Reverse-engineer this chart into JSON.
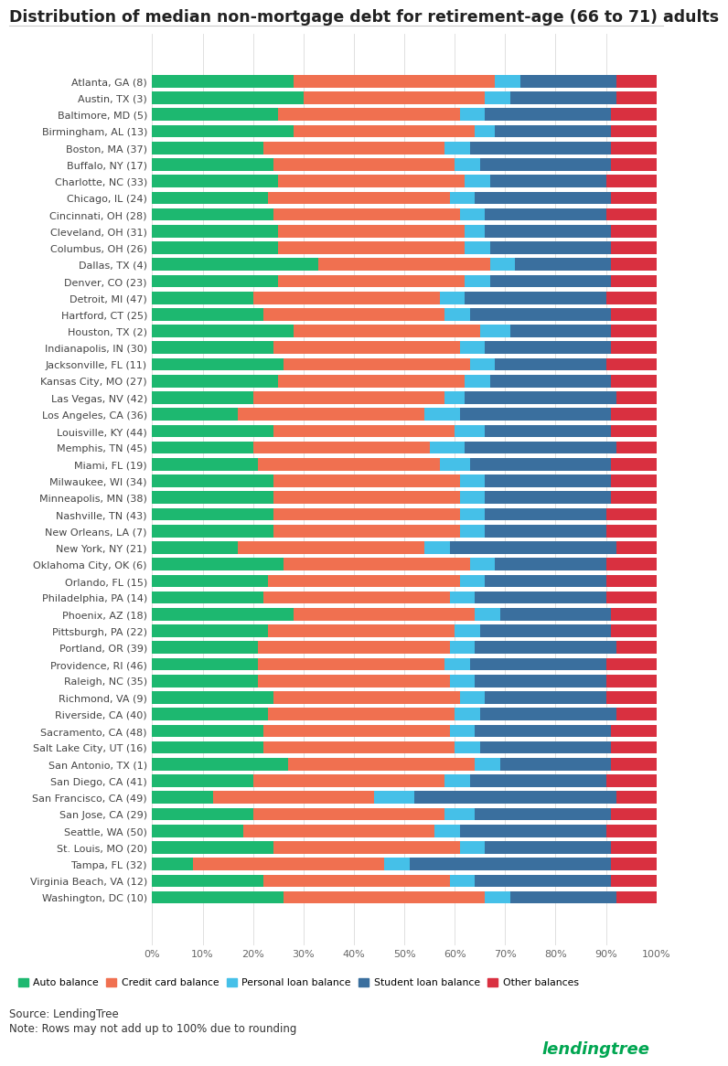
{
  "title": "Distribution of median non-mortgage debt for retirement-age (66 to 71) adults",
  "categories": [
    "Atlanta, GA (8)",
    "Austin, TX (3)",
    "Baltimore, MD (5)",
    "Birmingham, AL (13)",
    "Boston, MA (37)",
    "Buffalo, NY (17)",
    "Charlotte, NC (33)",
    "Chicago, IL (24)",
    "Cincinnati, OH (28)",
    "Cleveland, OH (31)",
    "Columbus, OH (26)",
    "Dallas, TX (4)",
    "Denver, CO (23)",
    "Detroit, MI (47)",
    "Hartford, CT (25)",
    "Houston, TX (2)",
    "Indianapolis, IN (30)",
    "Jacksonville, FL (11)",
    "Kansas City, MO (27)",
    "Las Vegas, NV (42)",
    "Los Angeles, CA (36)",
    "Louisville, KY (44)",
    "Memphis, TN (45)",
    "Miami, FL (19)",
    "Milwaukee, WI (34)",
    "Minneapolis, MN (38)",
    "Nashville, TN (43)",
    "New Orleans, LA (7)",
    "New York, NY (21)",
    "Oklahoma City, OK (6)",
    "Orlando, FL (15)",
    "Philadelphia, PA (14)",
    "Phoenix, AZ (18)",
    "Pittsburgh, PA (22)",
    "Portland, OR (39)",
    "Providence, RI (46)",
    "Raleigh, NC (35)",
    "Richmond, VA (9)",
    "Riverside, CA (40)",
    "Sacramento, CA (48)",
    "Salt Lake City, UT (16)",
    "San Antonio, TX (1)",
    "San Diego, CA (41)",
    "San Francisco, CA (49)",
    "San Jose, CA (29)",
    "Seattle, WA (50)",
    "St. Louis, MO (20)",
    "Tampa, FL (32)",
    "Virginia Beach, VA (12)",
    "Washington, DC (10)"
  ],
  "auto": [
    28,
    30,
    25,
    28,
    22,
    24,
    25,
    23,
    24,
    25,
    25,
    33,
    25,
    20,
    22,
    28,
    24,
    26,
    25,
    20,
    17,
    24,
    20,
    21,
    24,
    24,
    24,
    24,
    17,
    26,
    23,
    22,
    28,
    23,
    21,
    21,
    21,
    24,
    23,
    22,
    22,
    27,
    20,
    12,
    20,
    18,
    24,
    8,
    22,
    26
  ],
  "credit": [
    40,
    36,
    36,
    36,
    36,
    36,
    37,
    36,
    37,
    37,
    37,
    34,
    37,
    37,
    36,
    37,
    37,
    37,
    37,
    38,
    37,
    36,
    35,
    36,
    37,
    37,
    37,
    37,
    37,
    37,
    38,
    37,
    36,
    37,
    38,
    37,
    38,
    37,
    37,
    37,
    38,
    37,
    38,
    32,
    38,
    38,
    37,
    38,
    37,
    40
  ],
  "personal": [
    5,
    5,
    5,
    4,
    5,
    5,
    5,
    5,
    5,
    4,
    5,
    5,
    5,
    5,
    5,
    6,
    5,
    5,
    5,
    4,
    7,
    6,
    7,
    6,
    5,
    5,
    5,
    5,
    5,
    5,
    5,
    5,
    5,
    5,
    5,
    5,
    5,
    5,
    5,
    5,
    5,
    5,
    5,
    8,
    6,
    5,
    5,
    5,
    5,
    5
  ],
  "student": [
    19,
    21,
    25,
    23,
    28,
    26,
    23,
    27,
    24,
    25,
    24,
    19,
    24,
    28,
    28,
    20,
    25,
    22,
    24,
    30,
    30,
    25,
    30,
    28,
    25,
    25,
    24,
    24,
    33,
    22,
    24,
    26,
    22,
    26,
    28,
    27,
    26,
    24,
    27,
    27,
    26,
    22,
    27,
    40,
    27,
    29,
    25,
    40,
    27,
    21
  ],
  "other": [
    8,
    8,
    9,
    9,
    9,
    9,
    10,
    9,
    10,
    9,
    9,
    9,
    9,
    10,
    9,
    9,
    9,
    10,
    9,
    8,
    9,
    9,
    8,
    9,
    9,
    9,
    10,
    10,
    8,
    10,
    10,
    10,
    9,
    9,
    8,
    10,
    10,
    10,
    8,
    9,
    9,
    9,
    10,
    8,
    9,
    10,
    9,
    9,
    9,
    8
  ],
  "colors": {
    "auto": "#1db870",
    "credit": "#f07050",
    "personal": "#45c0e8",
    "student": "#3a6f9e",
    "other": "#d93040"
  },
  "legend_labels": [
    "Auto balance",
    "Credit card balance",
    "Personal loan balance",
    "Student loan balance",
    "Other balances"
  ],
  "source": "Source: LendingTree",
  "note": "Note: Rows may not add up to 100% due to rounding",
  "background_color": "#ffffff"
}
